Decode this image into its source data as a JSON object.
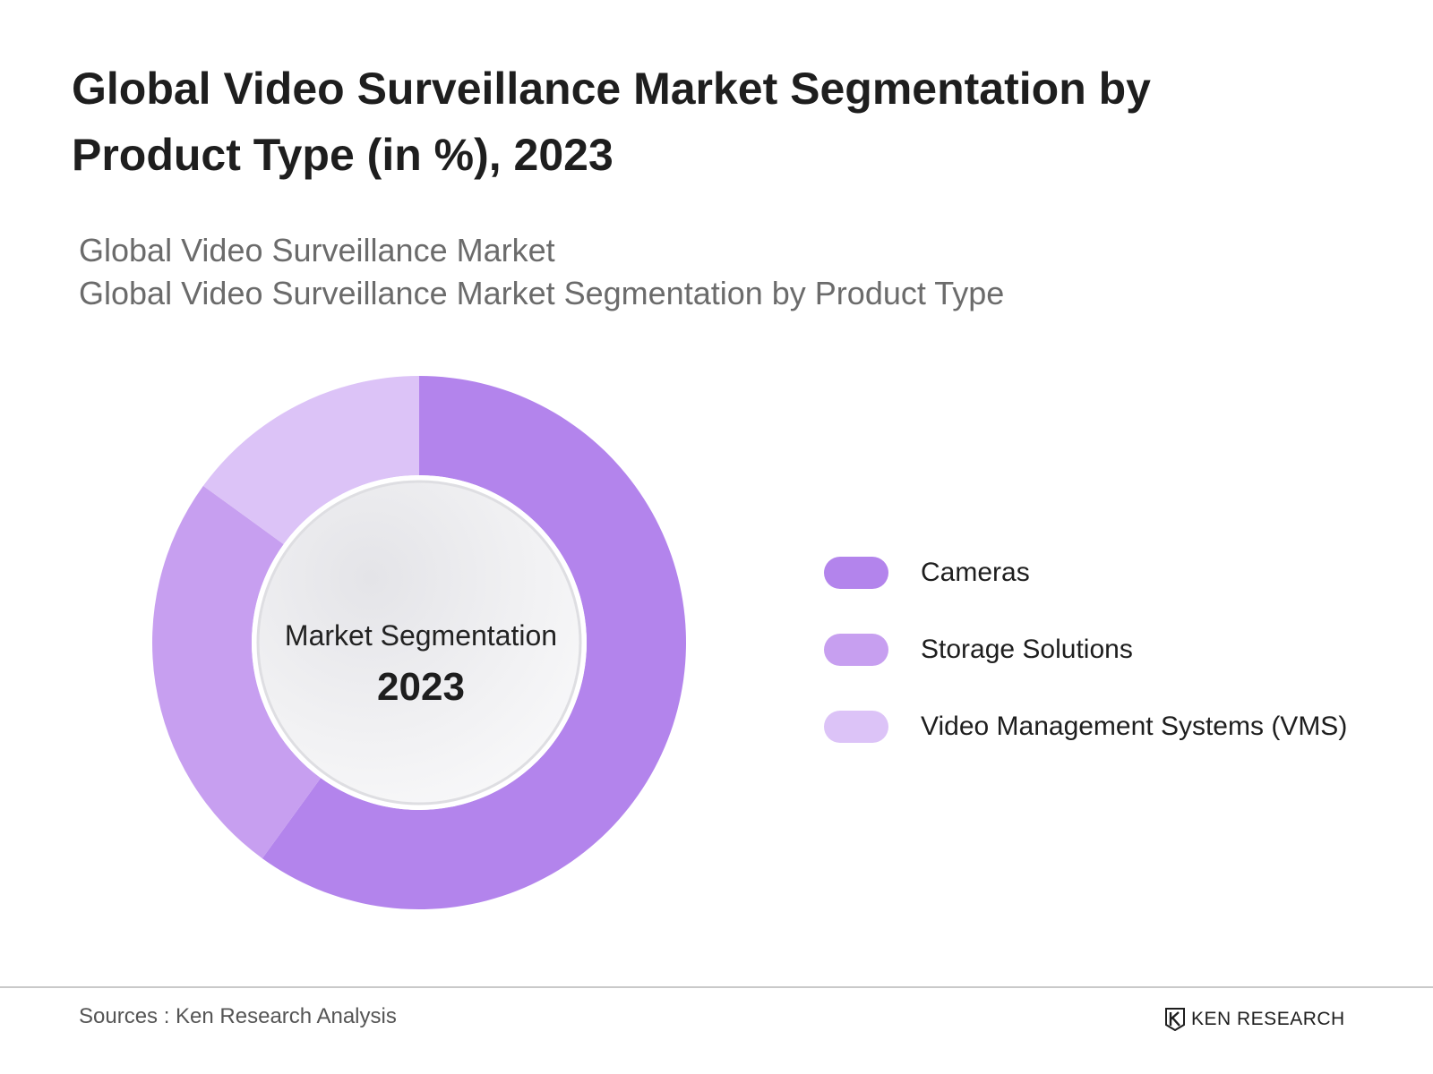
{
  "header": {
    "title": "Global Video Surveillance Market Segmentation by Product Type (in %), 2023",
    "subtitle_1": "Global Video Surveillance Market",
    "subtitle_2": "Global Video Surveillance Market Segmentation by Product Type"
  },
  "chart_data": {
    "type": "pie",
    "variant": "donut",
    "center_label": "Market Segmentation",
    "center_year": "2023",
    "legend_placement": "right",
    "categories": [
      "Cameras",
      "Storage Solutions",
      "Video Management Systems (VMS)"
    ],
    "values": [
      60,
      25,
      15
    ],
    "colors": [
      "#b384ec",
      "#c79ff0",
      "#dcc3f7"
    ]
  },
  "footer": {
    "source": "Sources : Ken Research Analysis",
    "brand": "KEN RESEARCH"
  }
}
